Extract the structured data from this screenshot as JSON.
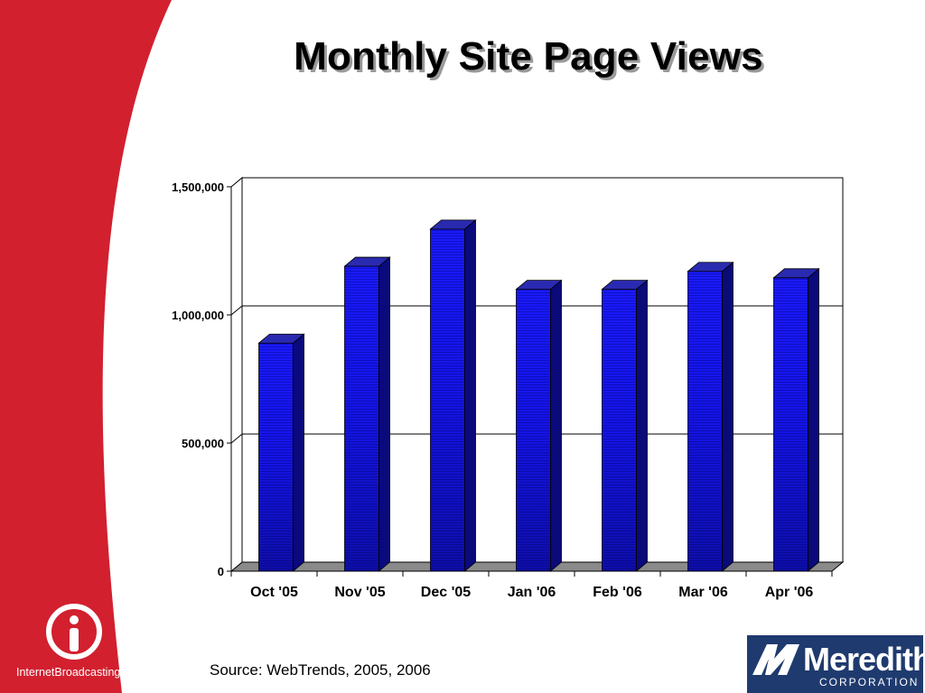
{
  "slide": {
    "title": "Monthly Site Page Views",
    "source": "Source: WebTrends, 2005, 2006"
  },
  "logos": {
    "left_logo_text": "InternetBroadcasting™",
    "right_logo_word": "Meredith",
    "right_logo_sub": "CORPORATION"
  },
  "colors": {
    "panel_red": "#d2202f",
    "bar_front": "#1414e6",
    "bar_side": "#0a0a7a",
    "bar_top": "#2a2ab0"
  },
  "chart_data": {
    "type": "bar",
    "categories": [
      "Oct '05",
      "Nov '05",
      "Dec '05",
      "Jan '06",
      "Feb '06",
      "Mar '06",
      "Apr '06"
    ],
    "values": [
      890000,
      1190000,
      1335000,
      1100000,
      1100000,
      1170000,
      1145000
    ],
    "ylim": [
      0,
      1500000
    ],
    "yticks": [
      0,
      500000,
      1000000,
      1500000
    ],
    "ytick_labels": [
      "0",
      "500,000",
      "1,000,000",
      "1,500,000"
    ],
    "grid": true,
    "legend": "none"
  }
}
